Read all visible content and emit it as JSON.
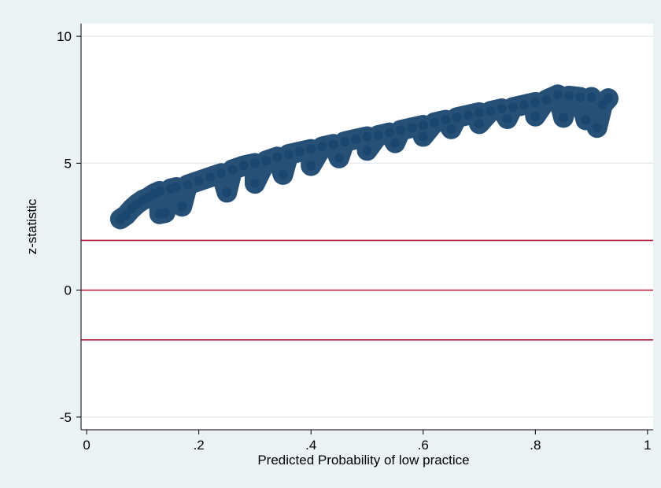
{
  "chart_data": {
    "type": "scatter",
    "title": "",
    "xlabel": "Predicted Probability of low practice",
    "ylabel": "z-statistic",
    "xlim": [
      -0.01,
      1.01
    ],
    "ylim": [
      -5.5,
      10.5
    ],
    "x_ticks": [
      0,
      0.2,
      0.4,
      0.6,
      0.8,
      1
    ],
    "x_tick_labels": [
      "0",
      ".2",
      ".4",
      ".6",
      ".8",
      "1"
    ],
    "y_ticks": [
      -5,
      0,
      5,
      10
    ],
    "y_tick_labels": [
      "-5",
      "0",
      "5",
      "10"
    ],
    "grid": "horizontal",
    "reference_lines_y": [
      1.96,
      0,
      -1.96
    ],
    "colors": {
      "points": "#1a476f",
      "reference_lines": "#b01c3c",
      "plot_background": "#ffffff",
      "figure_background": "#eaf2f3",
      "grid": "#e4ecef"
    },
    "series": [
      {
        "points": [
          [
            0.06,
            2.8
          ],
          [
            0.07,
            2.95
          ],
          [
            0.08,
            3.2
          ],
          [
            0.09,
            3.4
          ],
          [
            0.1,
            3.55
          ],
          [
            0.11,
            3.65
          ],
          [
            0.12,
            3.8
          ],
          [
            0.13,
            3.9
          ],
          [
            0.13,
            3.0
          ],
          [
            0.14,
            3.05
          ],
          [
            0.15,
            4.0
          ],
          [
            0.16,
            4.05
          ],
          [
            0.17,
            3.3
          ],
          [
            0.18,
            4.15
          ],
          [
            0.2,
            4.3
          ],
          [
            0.22,
            4.45
          ],
          [
            0.24,
            4.6
          ],
          [
            0.25,
            3.85
          ],
          [
            0.26,
            4.75
          ],
          [
            0.28,
            4.9
          ],
          [
            0.3,
            5.0
          ],
          [
            0.3,
            4.2
          ],
          [
            0.32,
            5.1
          ],
          [
            0.34,
            5.25
          ],
          [
            0.35,
            4.55
          ],
          [
            0.36,
            5.35
          ],
          [
            0.38,
            5.45
          ],
          [
            0.4,
            5.55
          ],
          [
            0.4,
            4.9
          ],
          [
            0.42,
            5.65
          ],
          [
            0.44,
            5.75
          ],
          [
            0.45,
            5.2
          ],
          [
            0.46,
            5.85
          ],
          [
            0.48,
            5.95
          ],
          [
            0.5,
            6.05
          ],
          [
            0.5,
            5.5
          ],
          [
            0.52,
            6.1
          ],
          [
            0.54,
            6.2
          ],
          [
            0.55,
            5.8
          ],
          [
            0.56,
            6.3
          ],
          [
            0.58,
            6.4
          ],
          [
            0.6,
            6.5
          ],
          [
            0.6,
            6.05
          ],
          [
            0.62,
            6.6
          ],
          [
            0.64,
            6.7
          ],
          [
            0.65,
            6.35
          ],
          [
            0.66,
            6.8
          ],
          [
            0.68,
            6.9
          ],
          [
            0.7,
            7.0
          ],
          [
            0.7,
            6.55
          ],
          [
            0.72,
            7.05
          ],
          [
            0.74,
            7.15
          ],
          [
            0.75,
            6.75
          ],
          [
            0.76,
            7.2
          ],
          [
            0.78,
            7.3
          ],
          [
            0.8,
            7.4
          ],
          [
            0.8,
            6.85
          ],
          [
            0.82,
            7.5
          ],
          [
            0.84,
            7.7
          ],
          [
            0.85,
            6.8
          ],
          [
            0.86,
            7.65
          ],
          [
            0.88,
            7.6
          ],
          [
            0.89,
            6.7
          ],
          [
            0.9,
            7.6
          ],
          [
            0.91,
            6.4
          ],
          [
            0.92,
            7.3
          ],
          [
            0.93,
            7.55
          ]
        ]
      }
    ]
  }
}
